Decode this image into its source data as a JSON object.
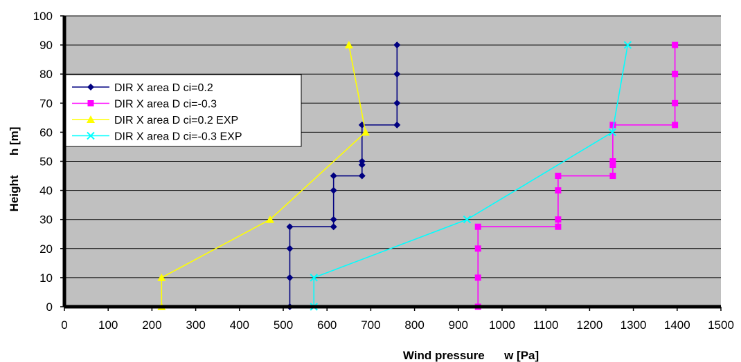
{
  "chart_data": {
    "type": "line",
    "title": "",
    "xlabel": "Wind pressure      w [Pa]",
    "ylabel": "Height      h [m]",
    "xlim": [
      0,
      1500
    ],
    "ylim": [
      0,
      100
    ],
    "xticks": [
      0,
      100,
      200,
      300,
      400,
      500,
      600,
      700,
      800,
      900,
      1000,
      1100,
      1200,
      1300,
      1400,
      1500
    ],
    "yticks": [
      0,
      10,
      20,
      30,
      40,
      50,
      60,
      70,
      80,
      90,
      100
    ],
    "grid": "horizontal",
    "plot_background": "#c0c0c0",
    "legend_position": "upper-left",
    "series": [
      {
        "name": "DIR X area D ci=0.2",
        "color": "#000080",
        "marker": "diamond",
        "points": [
          [
            515,
            0
          ],
          [
            515,
            10
          ],
          [
            515,
            20
          ],
          [
            515,
            27.5
          ],
          [
            615,
            27.5
          ],
          [
            615,
            30
          ],
          [
            615,
            40
          ],
          [
            615,
            45
          ],
          [
            680,
            45
          ],
          [
            680,
            48.8
          ],
          [
            680,
            50
          ],
          [
            680,
            62.5
          ],
          [
            760,
            62.5
          ],
          [
            760,
            70
          ],
          [
            760,
            80
          ],
          [
            760,
            90
          ]
        ]
      },
      {
        "name": "DIR X area D ci=-0.3",
        "color": "#ff00ff",
        "marker": "square",
        "points": [
          [
            945,
            0
          ],
          [
            945,
            10
          ],
          [
            945,
            20
          ],
          [
            945,
            27.5
          ],
          [
            1128,
            27.5
          ],
          [
            1128,
            30
          ],
          [
            1128,
            40
          ],
          [
            1128,
            45
          ],
          [
            1253,
            45
          ],
          [
            1253,
            48.8
          ],
          [
            1253,
            50
          ],
          [
            1253,
            62.5
          ],
          [
            1395,
            62.5
          ],
          [
            1395,
            70
          ],
          [
            1395,
            80
          ],
          [
            1395,
            90
          ]
        ]
      },
      {
        "name": "DIR X area D ci=0.2 EXP",
        "color": "#ffff00",
        "marker": "triangle",
        "points": [
          [
            222,
            0
          ],
          [
            222,
            10
          ],
          [
            470,
            30
          ],
          [
            688,
            60
          ],
          [
            650,
            90
          ]
        ]
      },
      {
        "name": "DIR X area D ci=-0.3 EXP",
        "color": "#00ffff",
        "marker": "x",
        "points": [
          [
            570,
            0
          ],
          [
            570,
            10
          ],
          [
            920,
            30
          ],
          [
            1252,
            60
          ],
          [
            1287,
            90
          ]
        ]
      }
    ]
  }
}
